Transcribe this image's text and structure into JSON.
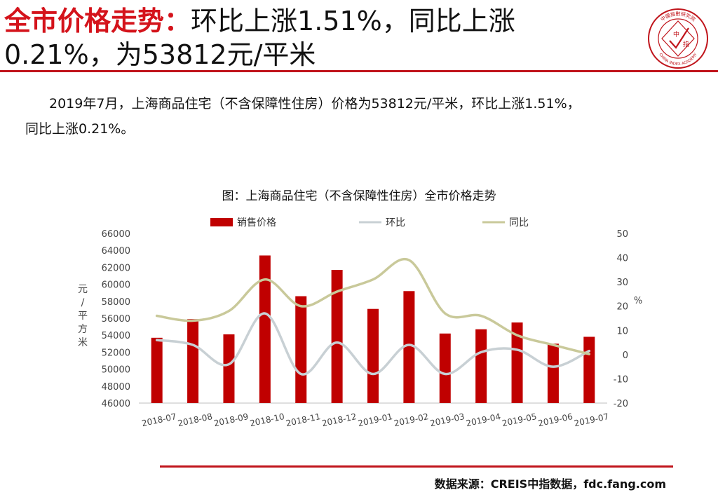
{
  "header": {
    "title_highlight": "全市价格走势：",
    "title_line1_rest": "环比上涨1.51%，同比上涨",
    "title_line2": "0.21%，为53812元/平米",
    "logo_text": "中國指數研究院 CHINA INDEX ACADEMY",
    "logo_center_chars": [
      "中",
      "指"
    ]
  },
  "body": {
    "paragraph_line1": "2019年7月，上海商品住宅（不含保障性住房）价格为53812元/平米，环比上涨1.51%，",
    "paragraph_line2": "同比上涨0.21%。"
  },
  "footer": {
    "source": "数据来源：CREIS中指数据，fdc.fang.com"
  },
  "colors": {
    "accent_red": "#c0141b",
    "bar": "#c00000",
    "mom_line": "#c8d0d4",
    "yoy_line": "#c9c99a"
  },
  "chart_data": {
    "type": "bar",
    "title": "图：上海商品住宅（不含保障性住房）全市价格走势",
    "categories": [
      "2018-07",
      "2018-08",
      "2018-09",
      "2018-10",
      "2018-11",
      "2018-12",
      "2019-01",
      "2019-02",
      "2019-03",
      "2019-04",
      "2019-05",
      "2019-06",
      "2019-07"
    ],
    "ylabel": "元/平方米",
    "ylabel_chars": [
      "元",
      "/",
      "平",
      "方",
      "米"
    ],
    "y2label": "%",
    "ylim": [
      46000,
      66000
    ],
    "y2lim": [
      -20,
      50
    ],
    "yticks": [
      46000,
      48000,
      50000,
      52000,
      54000,
      56000,
      58000,
      60000,
      62000,
      64000,
      66000
    ],
    "y2ticks": [
      -20,
      -10,
      0,
      10,
      20,
      30,
      40,
      50
    ],
    "series": [
      {
        "name": "销售价格",
        "kind": "bar",
        "axis": "left",
        "values": [
          53700,
          55900,
          54100,
          63400,
          58600,
          61700,
          57100,
          59200,
          54200,
          54700,
          55500,
          53000,
          53812
        ]
      },
      {
        "name": "环比",
        "kind": "line",
        "axis": "right",
        "values": [
          6,
          4,
          -4,
          17,
          -8,
          5,
          -8,
          4,
          -8,
          1,
          2,
          -5,
          1.51
        ]
      },
      {
        "name": "同比",
        "kind": "line",
        "axis": "right",
        "values": [
          16,
          14,
          18,
          31,
          20,
          26,
          31,
          39,
          17,
          16,
          8,
          4,
          0.21
        ]
      }
    ],
    "legend_position": "top",
    "grid": false
  }
}
